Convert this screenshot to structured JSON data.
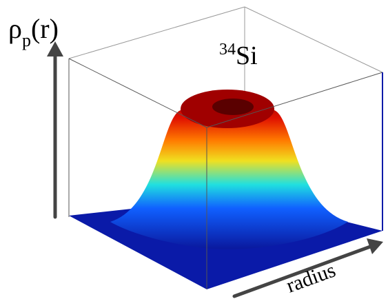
{
  "chart_data": {
    "type": "surface",
    "title": {
      "superscript": "34",
      "text": "Si"
    },
    "z_label": {
      "symbol": "ρ",
      "subscript": "p",
      "suffix": "(r)"
    },
    "x_label": "radius"
  }
}
